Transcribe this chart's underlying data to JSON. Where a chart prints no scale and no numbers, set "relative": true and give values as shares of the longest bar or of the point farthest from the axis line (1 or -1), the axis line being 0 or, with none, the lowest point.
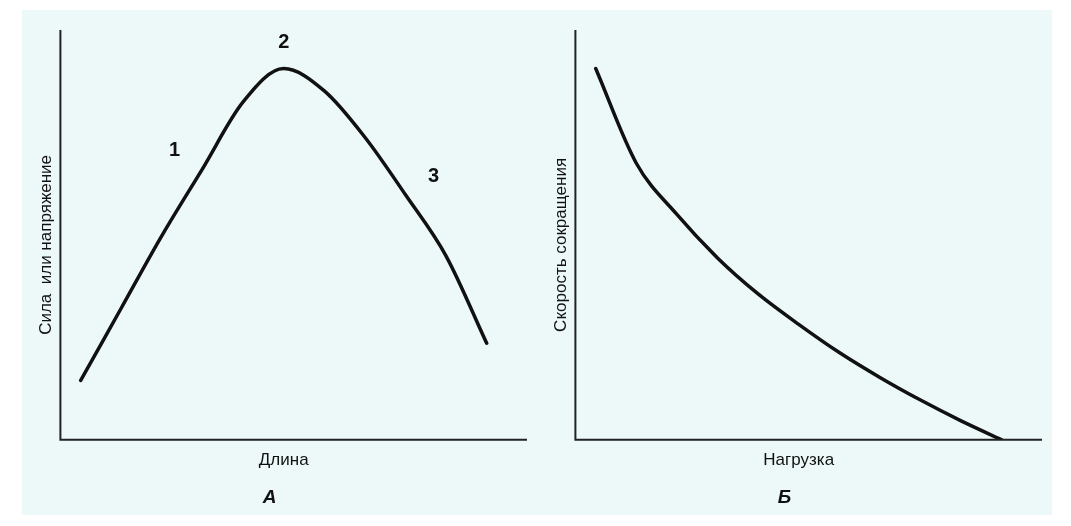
{
  "chart_data": [
    {
      "type": "line",
      "title": "А",
      "xlabel": "Длина",
      "ylabel": "Сила  или напряжение",
      "relative": true,
      "categories": [
        null,
        null,
        null,
        null,
        null,
        null,
        null,
        null,
        null,
        null,
        null
      ],
      "series": [
        {
          "color": "#111111",
          "values": [
            0.16,
            0.355,
            0.55,
            0.73,
            0.91,
            1,
            0.94,
            0.815,
            0.66,
            0.495,
            0.26
          ]
        }
      ],
      "annotations": [
        "1",
        "2",
        "3"
      ],
      "grid": false,
      "legend": false,
      "marker": "none",
      "line_style": "solid",
      "tick_labels": false
    },
    {
      "type": "line",
      "title": "Б",
      "xlabel": "Нагрузка",
      "ylabel": "Скорость сокращения",
      "relative": true,
      "categories": [
        null,
        null,
        null,
        null,
        null,
        null,
        null,
        null,
        null,
        null,
        null
      ],
      "series": [
        {
          "color": "#111111",
          "values": [
            1,
            0.745,
            0.607,
            0.49,
            0.393,
            0.311,
            0.235,
            0.168,
            0.107,
            0.051,
            0
          ]
        }
      ],
      "grid": false,
      "legend": false,
      "marker": "none",
      "line_style": "solid",
      "tick_labels": false
    }
  ]
}
